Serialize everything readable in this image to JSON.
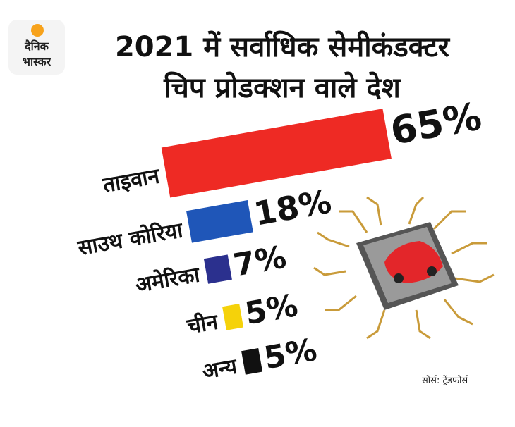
{
  "logo": {
    "line1": "दैनिक",
    "line2": "भास्कर"
  },
  "chart_data": {
    "type": "bar",
    "title": "2021 में सर्वाधिक सेमीकंडक्टर\nचिप प्रोडक्शन वाले देश",
    "categories": [
      "ताइवान",
      "साउथ कोरिया",
      "अमेरिका",
      "चीन",
      "अन्य"
    ],
    "values": [
      65,
      18,
      7,
      5,
      5
    ],
    "value_labels": [
      "65%",
      "18%",
      "7%",
      "5%",
      "5%"
    ],
    "colors": [
      "#ee2a24",
      "#1f56b8",
      "#2b308e",
      "#f5d20a",
      "#111111"
    ],
    "source": "सोर्स: ट्रेंडफोर्स"
  }
}
